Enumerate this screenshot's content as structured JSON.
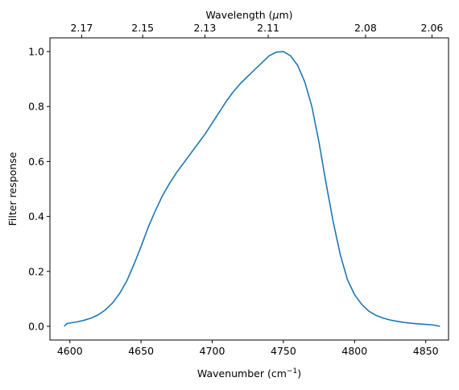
{
  "chart_data": {
    "type": "line",
    "title": "",
    "xlabel": "Wavenumber (cm",
    "xlabel_sup": "−1",
    "xlabel_close": ")",
    "ylabel": "Filter response",
    "x2label": "Wavelength (",
    "x2label_mu": "μ",
    "x2label_close": "m)",
    "xlim": [
      4586,
      4866
    ],
    "ylim": [
      -0.05,
      1.05
    ],
    "x_ticks": [
      4600,
      4650,
      4700,
      4750,
      4800,
      4850
    ],
    "x_tick_labels": [
      "4600",
      "4650",
      "4700",
      "4750",
      "4800",
      "4850"
    ],
    "y_ticks": [
      0.0,
      0.2,
      0.4,
      0.6,
      0.8,
      1.0
    ],
    "y_tick_labels": [
      "0.0",
      "0.2",
      "0.4",
      "0.6",
      "0.8",
      "1.0"
    ],
    "x2_ticks": [
      2.17,
      2.15,
      2.13,
      2.11,
      2.08,
      2.06
    ],
    "x2_tick_labels": [
      "2.17",
      "2.15",
      "2.13",
      "2.11",
      "2.08",
      "2.06"
    ],
    "grid": false,
    "line_color": "#1f77b4",
    "series": [
      {
        "x": [
          4596,
          4598,
          4600,
          4605,
          4610,
          4615,
          4620,
          4625,
          4630,
          4635,
          4640,
          4645,
          4650,
          4655,
          4660,
          4665,
          4670,
          4675,
          4680,
          4685,
          4690,
          4695,
          4700,
          4705,
          4710,
          4715,
          4720,
          4725,
          4730,
          4735,
          4740,
          4745,
          4750,
          4755,
          4760,
          4765,
          4770,
          4775,
          4780,
          4785,
          4790,
          4795,
          4800,
          4805,
          4810,
          4815,
          4820,
          4825,
          4830,
          4835,
          4840,
          4845,
          4850,
          4855,
          4858,
          4860
        ],
        "y": [
          0.0,
          0.01,
          0.012,
          0.016,
          0.022,
          0.03,
          0.042,
          0.06,
          0.085,
          0.12,
          0.165,
          0.225,
          0.29,
          0.36,
          0.42,
          0.475,
          0.52,
          0.56,
          0.595,
          0.63,
          0.665,
          0.7,
          0.74,
          0.78,
          0.82,
          0.855,
          0.885,
          0.91,
          0.935,
          0.96,
          0.985,
          0.998,
          1.0,
          0.985,
          0.95,
          0.89,
          0.8,
          0.67,
          0.52,
          0.38,
          0.26,
          0.17,
          0.115,
          0.08,
          0.055,
          0.04,
          0.03,
          0.023,
          0.018,
          0.014,
          0.011,
          0.009,
          0.007,
          0.005,
          0.002,
          0.0
        ]
      }
    ]
  }
}
